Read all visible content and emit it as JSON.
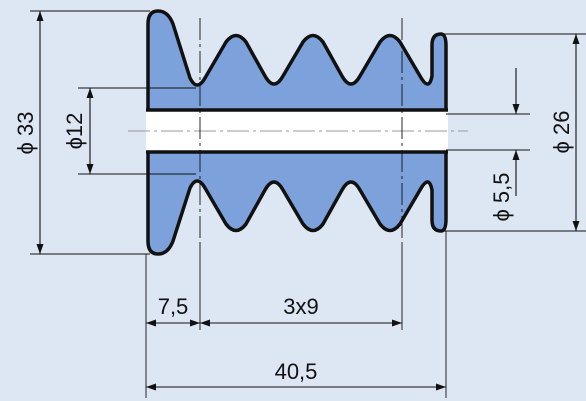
{
  "diagram": {
    "type": "technical-drawing-bellows",
    "colors": {
      "background": "#dde6f3",
      "part_fill": "#7ca1db",
      "outline": "#111111",
      "bore": "#ffffff"
    },
    "dimensions": {
      "outer_diameter": "ϕ 33",
      "bore_diameter": "ϕ12",
      "inner_diameter": "ϕ 26",
      "wall_thickness": "ϕ 5,5",
      "first_segment": "7,5",
      "pitch": "3x9",
      "total_length": "40,5"
    }
  }
}
